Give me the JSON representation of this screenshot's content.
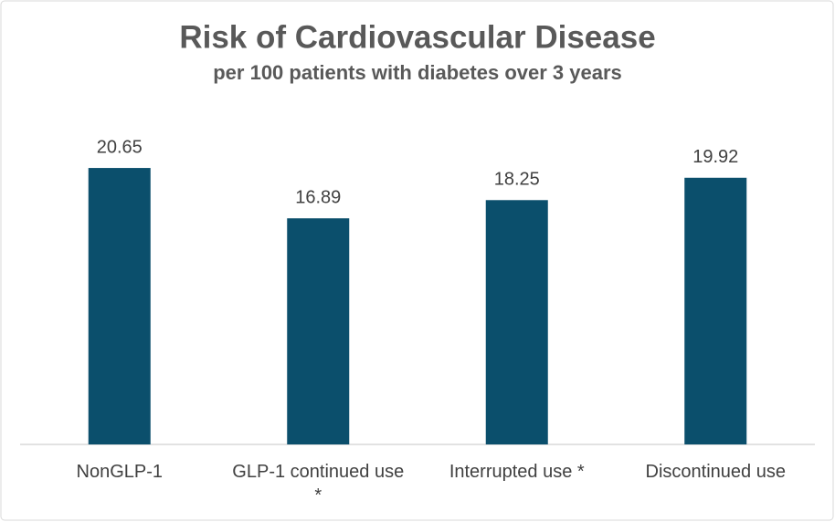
{
  "chart_data": {
    "type": "bar",
    "title": "Risk of Cardiovascular Disease",
    "subtitle": "per 100 patients with diabetes over 3 years",
    "categories": [
      "NonGLP-1",
      "GLP-1 continued use *",
      "Interrupted use *",
      "Discontinued use"
    ],
    "values": [
      20.65,
      16.89,
      18.25,
      19.92
    ],
    "color": "#0b4f6c"
  }
}
